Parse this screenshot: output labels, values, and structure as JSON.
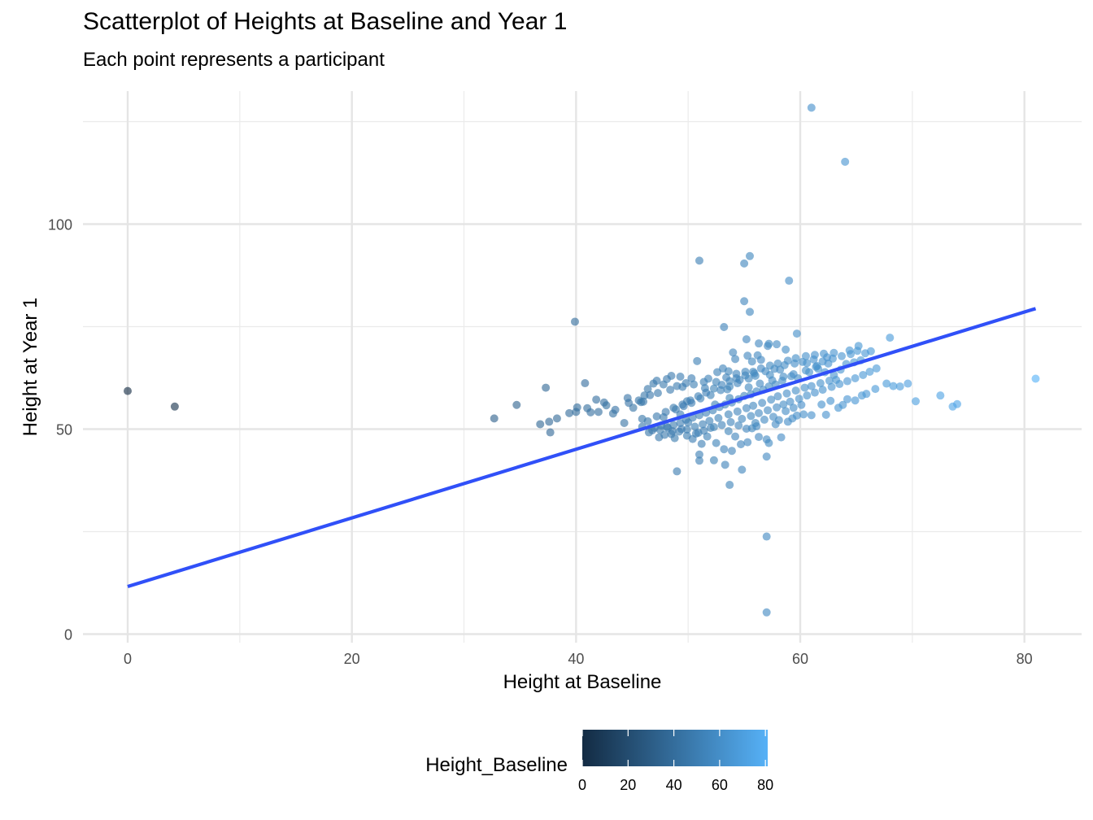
{
  "chart_data": {
    "type": "scatter",
    "title": "Scatterplot of Heights at Baseline and Year 1",
    "subtitle": "Each point represents a participant",
    "xlabel": "Height at Baseline",
    "ylabel": "Height at Year 1",
    "xlim": [
      -4,
      85
    ],
    "ylim": [
      -3,
      126
    ],
    "x_ticks": [
      0,
      20,
      40,
      60,
      80
    ],
    "y_ticks": [
      0,
      50,
      100
    ],
    "grid": true,
    "color_scale": {
      "title": "Height_Baseline",
      "low": "#132B43",
      "high": "#56B1F7",
      "range": [
        0,
        81
      ],
      "ticks": [
        0,
        20,
        40,
        60,
        80
      ],
      "position": "bottom"
    },
    "trend_line": {
      "x": [
        0,
        81
      ],
      "y": [
        11.6,
        79.4
      ],
      "color": "#3050F8"
    },
    "points": [
      [
        0,
        59.3
      ],
      [
        4.2,
        55.5
      ],
      [
        32.7,
        52.6
      ],
      [
        34.7,
        55.9
      ],
      [
        36.8,
        51.2
      ],
      [
        37.3,
        60.1
      ],
      [
        37.6,
        51.8
      ],
      [
        37.7,
        49.2
      ],
      [
        38.3,
        52.6
      ],
      [
        39.4,
        53.9
      ],
      [
        39.9,
        76.2
      ],
      [
        40.0,
        54.2
      ],
      [
        40.1,
        55.3
      ],
      [
        40.8,
        61.2
      ],
      [
        41.0,
        55.1
      ],
      [
        41.3,
        54.1
      ],
      [
        41.8,
        57.2
      ],
      [
        42.0,
        54.2
      ],
      [
        42.5,
        56.5
      ],
      [
        42.7,
        55.8
      ],
      [
        43.3,
        53.8
      ],
      [
        43.5,
        54.7
      ],
      [
        44.3,
        51.5
      ],
      [
        44.6,
        57.6
      ],
      [
        44.7,
        56.4
      ],
      [
        45.1,
        55.2
      ],
      [
        45.6,
        57.0
      ],
      [
        45.8,
        56.6
      ],
      [
        46.0,
        56.7
      ],
      [
        45.9,
        52.5
      ],
      [
        46.1,
        58.2
      ],
      [
        46.4,
        59.8
      ],
      [
        46.6,
        58.3
      ],
      [
        46.9,
        61.1
      ],
      [
        47.2,
        61.8
      ],
      [
        47.8,
        60.9
      ],
      [
        48.1,
        62.2
      ],
      [
        48.5,
        63.0
      ],
      [
        49.0,
        60.5
      ],
      [
        49.3,
        62.8
      ],
      [
        49.8,
        61.2
      ],
      [
        50.3,
        62.4
      ],
      [
        50.8,
        66.6
      ],
      [
        51.4,
        61.5
      ],
      [
        51.8,
        62.3
      ],
      [
        52.6,
        63.9
      ],
      [
        53.1,
        64.8
      ],
      [
        53.6,
        64.1
      ],
      [
        54.2,
        67.1
      ],
      [
        54.6,
        62.0
      ],
      [
        55.1,
        64.0
      ],
      [
        55.3,
        67.9
      ],
      [
        55.7,
        66.5
      ],
      [
        56.3,
        70.9
      ],
      [
        57.2,
        70.8
      ],
      [
        57.9,
        70.7
      ],
      [
        58.7,
        69.4
      ],
      [
        59.7,
        73.3
      ],
      [
        53.7,
        57.6
      ],
      [
        52.4,
        56.0
      ],
      [
        53.5,
        59.7
      ],
      [
        49.9,
        56.8
      ],
      [
        55.9,
        63.6
      ],
      [
        57.3,
        63.2
      ],
      [
        58.2,
        64.5
      ],
      [
        56.5,
        66.9
      ],
      [
        47.4,
        48.0
      ],
      [
        48.2,
        50.3
      ],
      [
        48.8,
        47.8
      ],
      [
        49.3,
        53.6
      ],
      [
        49.9,
        48.4
      ],
      [
        50.4,
        47.6
      ],
      [
        50.9,
        49.1
      ],
      [
        51.2,
        46.4
      ],
      [
        51.7,
        48.2
      ],
      [
        52.3,
        50.5
      ],
      [
        52.5,
        46.6
      ],
      [
        53.2,
        45.1
      ],
      [
        53.6,
        49.5
      ],
      [
        53.9,
        44.7
      ],
      [
        54.2,
        48.2
      ],
      [
        54.7,
        46.3
      ],
      [
        55.3,
        46.8
      ],
      [
        55.7,
        50.2
      ],
      [
        56.1,
        50.7
      ],
      [
        56.3,
        48.1
      ],
      [
        57.0,
        47.5
      ],
      [
        57.2,
        46.6
      ],
      [
        57.8,
        51.2
      ],
      [
        58.3,
        48.0
      ],
      [
        58.9,
        51.8
      ],
      [
        59.3,
        52.6
      ],
      [
        59.7,
        53.3
      ],
      [
        60.3,
        53.6
      ],
      [
        61.0,
        53.4
      ],
      [
        61.9,
        56.0
      ],
      [
        62.3,
        53.5
      ],
      [
        62.7,
        56.9
      ],
      [
        63.4,
        55.2
      ],
      [
        63.8,
        55.9
      ],
      [
        64.2,
        57.3
      ],
      [
        64.9,
        57.0
      ],
      [
        65.5,
        58.2
      ],
      [
        65.9,
        58.6
      ],
      [
        66.7,
        59.8
      ],
      [
        67.7,
        61.1
      ],
      [
        68.3,
        60.5
      ],
      [
        68.9,
        60.4
      ],
      [
        69.6,
        61.1
      ],
      [
        70.3,
        56.8
      ],
      [
        72.5,
        58.2
      ],
      [
        73.6,
        55.5
      ],
      [
        74.0,
        56.1
      ],
      [
        81.0,
        62.3
      ],
      [
        51.0,
        43.8
      ],
      [
        51.0,
        42.3
      ],
      [
        52.3,
        42.4
      ],
      [
        53.3,
        41.3
      ],
      [
        54.8,
        40.1
      ],
      [
        53.7,
        36.4
      ],
      [
        49.0,
        39.7
      ],
      [
        57.0,
        43.3
      ],
      [
        51.0,
        91.1
      ],
      [
        55.0,
        90.4
      ],
      [
        55.5,
        92.2
      ],
      [
        57.0,
        23.8
      ],
      [
        57.0,
        5.3
      ],
      [
        55.0,
        81.2
      ],
      [
        55.5,
        78.6
      ],
      [
        59.0,
        86.2
      ],
      [
        61.0,
        128.4
      ],
      [
        64.0,
        115.2
      ],
      [
        53.2,
        74.9
      ],
      [
        55.2,
        71.9
      ],
      [
        54.0,
        68.7
      ],
      [
        56.2,
        68.0
      ],
      [
        57.1,
        70.3
      ],
      [
        64.4,
        69.2
      ],
      [
        60.6,
        66.1
      ],
      [
        61.2,
        67.0
      ],
      [
        62.0,
        66.5
      ],
      [
        62.9,
        67.2
      ],
      [
        63.7,
        67.8
      ],
      [
        64.5,
        68.3
      ],
      [
        65.1,
        69.1
      ],
      [
        65.8,
        68.5
      ],
      [
        66.3,
        69.0
      ],
      [
        65.2,
        70.3
      ],
      [
        68.0,
        72.3
      ],
      [
        62.4,
        67.5
      ],
      [
        61.4,
        65.2
      ],
      [
        60.8,
        63.9
      ],
      [
        59.8,
        62.4
      ],
      [
        59.2,
        62.9
      ],
      [
        58.4,
        61.8
      ],
      [
        57.8,
        60.9
      ],
      [
        57.2,
        60.4
      ],
      [
        56.7,
        59.6
      ],
      [
        56.1,
        59.2
      ],
      [
        55.6,
        58.5
      ],
      [
        55.0,
        58.1
      ],
      [
        54.5,
        57.3
      ],
      [
        53.9,
        56.5
      ],
      [
        53.3,
        56.0
      ],
      [
        52.8,
        55.4
      ],
      [
        52.2,
        54.6
      ],
      [
        51.6,
        54.0
      ],
      [
        51.0,
        53.4
      ],
      [
        50.4,
        52.8
      ],
      [
        49.8,
        52.3
      ],
      [
        49.3,
        51.5
      ],
      [
        48.7,
        51.0
      ],
      [
        48.1,
        50.6
      ],
      [
        47.5,
        49.8
      ],
      [
        47.0,
        50.3
      ],
      [
        46.5,
        49.2
      ],
      [
        47.8,
        52.9
      ],
      [
        48.9,
        54.8
      ],
      [
        49.6,
        55.6
      ],
      [
        50.3,
        56.4
      ],
      [
        51.1,
        57.5
      ],
      [
        52.0,
        58.3
      ],
      [
        52.9,
        59.5
      ],
      [
        53.7,
        60.4
      ],
      [
        54.4,
        61.2
      ],
      [
        55.4,
        62.3
      ],
      [
        56.0,
        63.0
      ],
      [
        56.9,
        64.1
      ],
      [
        57.7,
        64.7
      ],
      [
        58.6,
        65.6
      ],
      [
        59.5,
        66.0
      ],
      [
        60.2,
        66.4
      ],
      [
        61.6,
        64.7
      ],
      [
        62.2,
        63.9
      ],
      [
        63.0,
        63.2
      ],
      [
        63.6,
        64.5
      ],
      [
        64.1,
        65.9
      ],
      [
        64.8,
        66.3
      ],
      [
        65.4,
        66.8
      ],
      [
        63.2,
        62.0
      ],
      [
        62.6,
        61.8
      ],
      [
        61.8,
        61.2
      ],
      [
        61.0,
        60.5
      ],
      [
        60.4,
        60.1
      ],
      [
        59.6,
        59.4
      ],
      [
        58.8,
        58.7
      ],
      [
        58.0,
        58.0
      ],
      [
        57.4,
        57.2
      ],
      [
        56.6,
        56.4
      ],
      [
        55.8,
        55.7
      ],
      [
        55.2,
        55.1
      ],
      [
        54.4,
        54.3
      ],
      [
        53.6,
        53.6
      ],
      [
        52.7,
        52.7
      ],
      [
        51.9,
        52.0
      ],
      [
        51.3,
        51.2
      ],
      [
        50.6,
        50.6
      ],
      [
        49.9,
        49.9
      ],
      [
        49.2,
        49.4
      ],
      [
        48.5,
        48.8
      ],
      [
        47.9,
        48.6
      ],
      [
        54.8,
        52.5
      ],
      [
        55.6,
        53.2
      ],
      [
        56.3,
        53.9
      ],
      [
        57.1,
        54.6
      ],
      [
        57.9,
        55.3
      ],
      [
        58.5,
        56.0
      ],
      [
        59.1,
        56.7
      ],
      [
        59.9,
        57.4
      ],
      [
        60.6,
        58.2
      ],
      [
        61.3,
        58.9
      ],
      [
        62.0,
        59.6
      ],
      [
        62.8,
        60.3
      ],
      [
        63.5,
        61.0
      ],
      [
        64.2,
        61.7
      ],
      [
        64.9,
        62.4
      ],
      [
        65.6,
        63.2
      ],
      [
        66.2,
        64.0
      ],
      [
        66.8,
        64.8
      ],
      [
        53.0,
        51.0
      ],
      [
        53.8,
        51.7
      ],
      [
        54.5,
        50.9
      ],
      [
        55.2,
        50.1
      ],
      [
        56.0,
        51.5
      ],
      [
        56.8,
        52.3
      ],
      [
        57.6,
        53.0
      ],
      [
        58.1,
        52.2
      ],
      [
        58.7,
        54.4
      ],
      [
        59.4,
        55.2
      ],
      [
        60.1,
        55.9
      ],
      [
        52.0,
        50.3
      ],
      [
        51.4,
        49.6
      ],
      [
        50.7,
        48.9
      ],
      [
        50.0,
        51.6
      ],
      [
        49.4,
        50.0
      ],
      [
        48.6,
        49.5
      ],
      [
        47.6,
        50.9
      ],
      [
        46.8,
        49.7
      ],
      [
        45.9,
        50.6
      ],
      [
        46.4,
        51.9
      ],
      [
        47.2,
        53.1
      ],
      [
        48.0,
        54.2
      ],
      [
        48.7,
        55.2
      ],
      [
        49.5,
        56.0
      ],
      [
        50.2,
        57.0
      ],
      [
        50.9,
        58.0
      ],
      [
        51.6,
        58.9
      ],
      [
        52.3,
        59.9
      ],
      [
        53.0,
        60.8
      ],
      [
        53.7,
        61.7
      ],
      [
        54.3,
        62.4
      ],
      [
        55.1,
        63.1
      ],
      [
        55.8,
        64.0
      ],
      [
        56.5,
        64.8
      ],
      [
        57.3,
        65.5
      ],
      [
        58.0,
        66.0
      ],
      [
        58.9,
        66.7
      ],
      [
        59.6,
        67.3
      ],
      [
        60.5,
        67.8
      ],
      [
        61.3,
        68.1
      ],
      [
        62.1,
        68.4
      ],
      [
        63.0,
        68.6
      ],
      [
        47.3,
        58.8
      ],
      [
        48.4,
        59.6
      ],
      [
        49.5,
        60.3
      ],
      [
        50.5,
        60.9
      ],
      [
        51.5,
        60.0
      ],
      [
        52.5,
        61.5
      ],
      [
        53.4,
        62.6
      ],
      [
        54.3,
        63.5
      ],
      [
        55.4,
        60.2
      ],
      [
        56.4,
        61.1
      ],
      [
        57.5,
        61.9
      ],
      [
        58.5,
        62.8
      ],
      [
        59.4,
        63.4
      ],
      [
        60.5,
        64.3
      ],
      [
        61.5,
        65.4
      ],
      [
        62.5,
        66.0
      ]
    ]
  }
}
